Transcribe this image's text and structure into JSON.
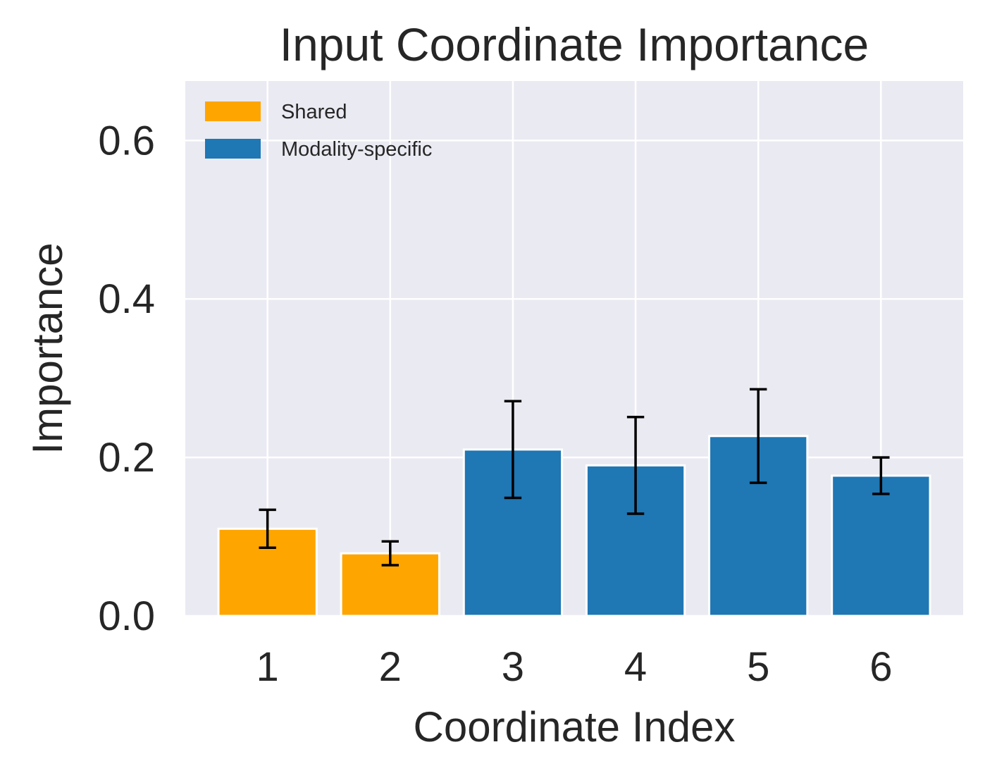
{
  "chart_data": {
    "type": "bar",
    "title": "Input Coordinate Importance",
    "xlabel": "Coordinate Index",
    "ylabel": "Importance",
    "categories": [
      "1",
      "2",
      "3",
      "4",
      "5",
      "6"
    ],
    "values": [
      0.11,
      0.079,
      0.21,
      0.19,
      0.227,
      0.177
    ],
    "errors": [
      0.024,
      0.015,
      0.061,
      0.061,
      0.059,
      0.023
    ],
    "groups": [
      "Shared",
      "Shared",
      "Modality-specific",
      "Modality-specific",
      "Modality-specific",
      "Modality-specific"
    ],
    "series": [
      {
        "name": "Shared",
        "color": "#ffa500"
      },
      {
        "name": "Modality-specific",
        "color": "#1f77b4"
      }
    ],
    "ylim": [
      0,
      0.675
    ],
    "yticks": [
      0.0,
      0.2,
      0.4,
      0.6
    ],
    "ytick_labels": [
      "0.0",
      "0.2",
      "0.4",
      "0.6"
    ],
    "grid": true,
    "legend_position": "top-left",
    "background": "#eaeaf2",
    "errorbar_color": "#000000"
  }
}
